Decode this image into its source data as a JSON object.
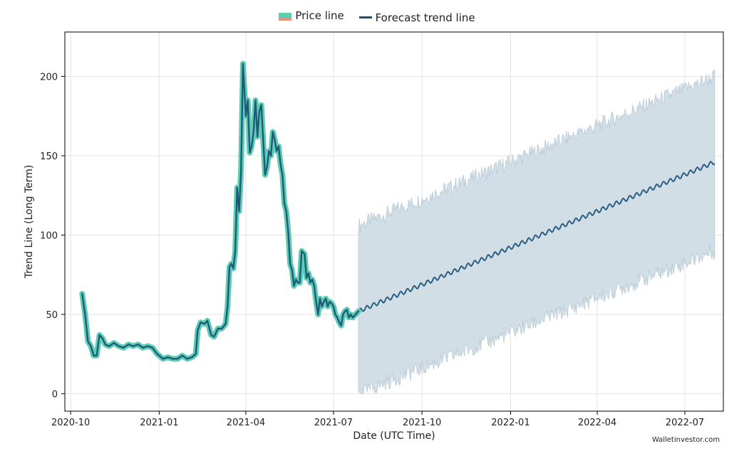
{
  "legend": {
    "price_label": "Price line",
    "forecast_label": "Forecast trend line"
  },
  "watermark": "Walletinvestor.com",
  "colors": {
    "price_line": "#1f5b78",
    "price_glow": "#5ecdb4",
    "price_accent": "#f08c7a",
    "forecast_line": "#2a5f84",
    "forecast_band": "#d2dee6",
    "forecast_band_edge": "#b7c9d5",
    "grid": "#e3e3e3"
  },
  "chart_data": {
    "type": "line",
    "xlabel": "Date (UTC Time)",
    "ylabel": "Trend Line (Long Term)",
    "x_type": "date",
    "xlim": [
      "2020-09-25",
      "2022-08-10"
    ],
    "ylim": [
      -11,
      228
    ],
    "grid": true,
    "legend_position": "top-center",
    "x_ticks": [
      "2020-10-01",
      "2021-01-01",
      "2021-04-01",
      "2021-07-01",
      "2021-10-01",
      "2022-01-01",
      "2022-04-01",
      "2022-07-01"
    ],
    "x_tick_labels": [
      "2020-10",
      "2021-01",
      "2021-04",
      "2021-07",
      "2021-10",
      "2022-01",
      "2022-04",
      "2022-07"
    ],
    "y_ticks": [
      0,
      50,
      100,
      150,
      200
    ],
    "series": [
      {
        "name": "Price line",
        "x": [
          "2020-10-13",
          "2020-10-16",
          "2020-10-19",
          "2020-10-22",
          "2020-10-25",
          "2020-10-28",
          "2020-10-31",
          "2020-11-03",
          "2020-11-06",
          "2020-11-10",
          "2020-11-15",
          "2020-11-20",
          "2020-11-25",
          "2020-11-30",
          "2020-12-05",
          "2020-12-10",
          "2020-12-15",
          "2020-12-20",
          "2020-12-25",
          "2020-12-30",
          "2021-01-05",
          "2021-01-10",
          "2021-01-15",
          "2021-01-20",
          "2021-01-25",
          "2021-01-30",
          "2021-02-04",
          "2021-02-08",
          "2021-02-10",
          "2021-02-13",
          "2021-02-17",
          "2021-02-20",
          "2021-02-24",
          "2021-02-27",
          "2021-03-03",
          "2021-03-07",
          "2021-03-11",
          "2021-03-13",
          "2021-03-15",
          "2021-03-17",
          "2021-03-19",
          "2021-03-21",
          "2021-03-23",
          "2021-03-25",
          "2021-03-27",
          "2021-03-29",
          "2021-04-01",
          "2021-04-03",
          "2021-04-05",
          "2021-04-07",
          "2021-04-09",
          "2021-04-11",
          "2021-04-13",
          "2021-04-15",
          "2021-04-17",
          "2021-04-19",
          "2021-04-21",
          "2021-04-23",
          "2021-04-25",
          "2021-04-27",
          "2021-04-29",
          "2021-05-01",
          "2021-05-03",
          "2021-05-05",
          "2021-05-07",
          "2021-05-09",
          "2021-05-11",
          "2021-05-13",
          "2021-05-15",
          "2021-05-17",
          "2021-05-19",
          "2021-05-21",
          "2021-05-23",
          "2021-05-25",
          "2021-05-27",
          "2021-05-29",
          "2021-06-01",
          "2021-06-03",
          "2021-06-05",
          "2021-06-07",
          "2021-06-09",
          "2021-06-11",
          "2021-06-13",
          "2021-06-15",
          "2021-06-17",
          "2021-06-19",
          "2021-06-21",
          "2021-06-23",
          "2021-06-25",
          "2021-06-27",
          "2021-06-29",
          "2021-07-01",
          "2021-07-03",
          "2021-07-05",
          "2021-07-07",
          "2021-07-09",
          "2021-07-11",
          "2021-07-13",
          "2021-07-15",
          "2021-07-17",
          "2021-07-19",
          "2021-07-21",
          "2021-07-24",
          "2021-07-27"
        ],
        "values": [
          63,
          50,
          33,
          30,
          24,
          24,
          37,
          35,
          31,
          30,
          32,
          30,
          29,
          31,
          30,
          31,
          29,
          30,
          29,
          25,
          22,
          23,
          22,
          22,
          24,
          22,
          23,
          25,
          40,
          45,
          44,
          46,
          37,
          36,
          41,
          41,
          44,
          55,
          80,
          82,
          79,
          90,
          130,
          115,
          140,
          208,
          175,
          185,
          152,
          156,
          165,
          185,
          162,
          178,
          182,
          160,
          138,
          143,
          153,
          150,
          165,
          160,
          153,
          156,
          145,
          138,
          120,
          115,
          102,
          82,
          78,
          68,
          72,
          70,
          70,
          90,
          88,
          73,
          76,
          70,
          72,
          68,
          58,
          50,
          60,
          55,
          58,
          60,
          55,
          58,
          57,
          55,
          50,
          48,
          45,
          43,
          50,
          52,
          53,
          48,
          50,
          48,
          50,
          52
        ]
      },
      {
        "name": "Forecast trend line",
        "x_start": "2021-07-27",
        "x_end": "2022-08-01",
        "y_start": 52,
        "y_end": 146,
        "oscillation_amplitude": 1.3,
        "band_lower_start": 0,
        "band_lower_end": 90,
        "band_upper_start": 106,
        "band_upper_end": 200
      }
    ]
  }
}
